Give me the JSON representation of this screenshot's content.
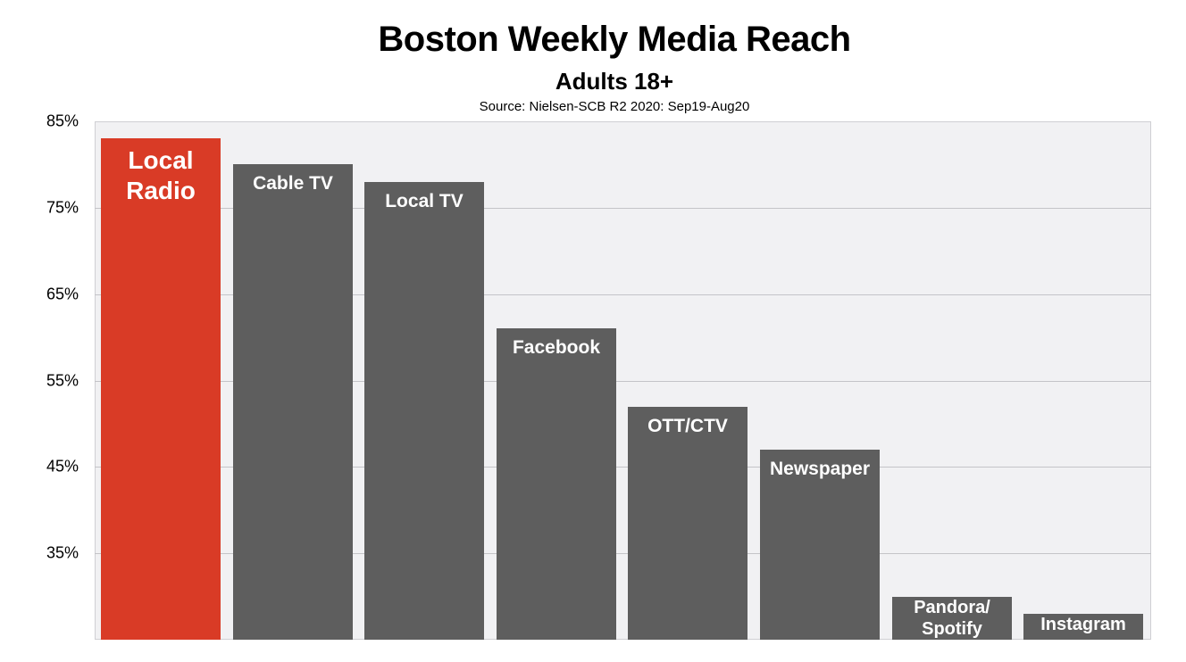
{
  "title": "Boston Weekly Media Reach",
  "subtitle": "Adults 18+",
  "source": "Source: Nielsen-SCB R2 2020: Sep19-Aug20",
  "colors": {
    "highlight": "#d93b26",
    "bar": "#5e5e5e",
    "plot_bg": "#f1f1f3",
    "grid": "#c4c4c8"
  },
  "y_ticks": [
    "85%",
    "75%",
    "65%",
    "55%",
    "45%",
    "35%"
  ],
  "bars": [
    {
      "label_lines": [
        "Local",
        "Radio"
      ],
      "value": 83,
      "highlight": true
    },
    {
      "label_lines": [
        "Cable TV"
      ],
      "value": 80,
      "highlight": false
    },
    {
      "label_lines": [
        "Local TV"
      ],
      "value": 78,
      "highlight": false
    },
    {
      "label_lines": [
        "Facebook"
      ],
      "value": 61,
      "highlight": false
    },
    {
      "label_lines": [
        "OTT/CTV"
      ],
      "value": 52,
      "highlight": false
    },
    {
      "label_lines": [
        "Newspaper"
      ],
      "value": 47,
      "highlight": false
    },
    {
      "label_lines": [
        "Pandora/",
        "Spotify"
      ],
      "value": 30,
      "highlight": false
    },
    {
      "label_lines": [
        "Instagram"
      ],
      "value": 28,
      "highlight": false
    }
  ],
  "chart_data": {
    "type": "bar",
    "title": "Boston Weekly Media Reach",
    "subtitle": "Adults 18+",
    "annotation": "Source: Nielsen-SCB R2 2020: Sep19-Aug20",
    "categories": [
      "Local Radio",
      "Cable TV",
      "Local TV",
      "Facebook",
      "OTT/CTV",
      "Newspaper",
      "Pandora/Spotify",
      "Instagram"
    ],
    "values": [
      83,
      80,
      78,
      61,
      52,
      47,
      30,
      28
    ],
    "xlabel": "",
    "ylabel": "",
    "ylim": [
      25,
      85
    ],
    "yticks": [
      35,
      45,
      55,
      65,
      75,
      85
    ],
    "ytick_format": "percent",
    "grid": true,
    "legend": "none",
    "bar_labels": "category names inside top of bars",
    "highlighted_category": "Local Radio"
  }
}
